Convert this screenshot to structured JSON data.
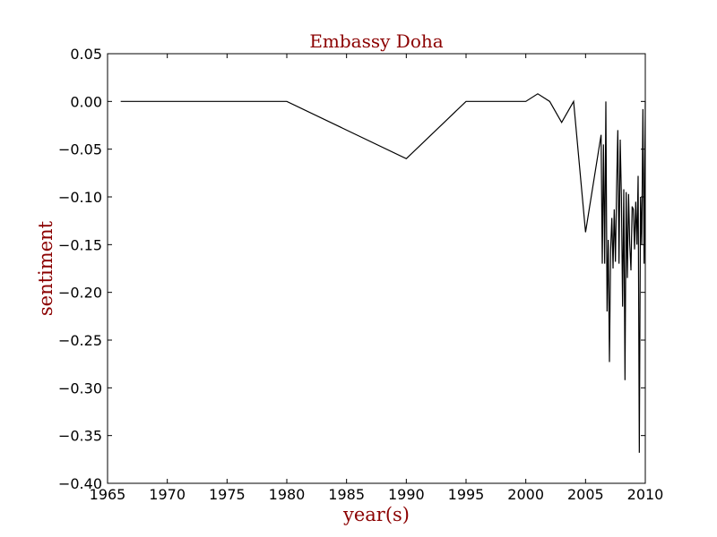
{
  "chart_data": {
    "type": "line",
    "title": "Embassy Doha",
    "xlabel": "year(s)",
    "ylabel": "sentiment",
    "xlim": [
      1965,
      2010
    ],
    "ylim": [
      -0.4,
      0.05
    ],
    "xticks": [
      "1965",
      "1970",
      "1975",
      "1980",
      "1985",
      "1990",
      "1995",
      "2000",
      "2005",
      "2010"
    ],
    "yticks": [
      "0.05",
      "0.00",
      "−0.05",
      "−0.10",
      "−0.15",
      "−0.20",
      "−0.25",
      "−0.30",
      "−0.35",
      "−0.40"
    ],
    "grid": false,
    "line_color": "#000000",
    "title_color": "#8b0000",
    "series": [
      {
        "x": [
          1966.1,
          1980.0,
          1990.0,
          1995.0,
          2000.0,
          2001.0,
          2002.0,
          2003.0,
          2004.0,
          2005.0,
          2006.3,
          2006.4,
          2006.5,
          2006.6,
          2006.7,
          2006.8,
          2006.9,
          2007.0,
          2007.1,
          2007.2,
          2007.3,
          2007.4,
          2007.5,
          2007.6,
          2007.7,
          2007.8,
          2007.9,
          2008.0,
          2008.1,
          2008.2,
          2008.3,
          2008.4,
          2008.5,
          2008.6,
          2008.7,
          2008.8,
          2008.9,
          2009.0,
          2009.1,
          2009.2,
          2009.3,
          2009.4,
          2009.5,
          2009.6,
          2009.7,
          2009.8,
          2009.9,
          2010.0
        ],
        "y": [
          0.0,
          0.0,
          -0.06,
          0.0,
          0.0,
          0.008,
          0.0,
          -0.022,
          0.0,
          -0.137,
          -0.035,
          -0.17,
          -0.045,
          -0.17,
          0.0,
          -0.22,
          -0.145,
          -0.273,
          -0.155,
          -0.122,
          -0.175,
          -0.113,
          -0.168,
          -0.09,
          -0.03,
          -0.17,
          -0.04,
          -0.1,
          -0.215,
          -0.092,
          -0.292,
          -0.095,
          -0.185,
          -0.097,
          -0.15,
          -0.177,
          -0.11,
          -0.113,
          -0.155,
          -0.105,
          -0.15,
          -0.078,
          -0.368,
          -0.1,
          -0.15,
          -0.008,
          -0.17,
          0.0
        ]
      }
    ]
  }
}
